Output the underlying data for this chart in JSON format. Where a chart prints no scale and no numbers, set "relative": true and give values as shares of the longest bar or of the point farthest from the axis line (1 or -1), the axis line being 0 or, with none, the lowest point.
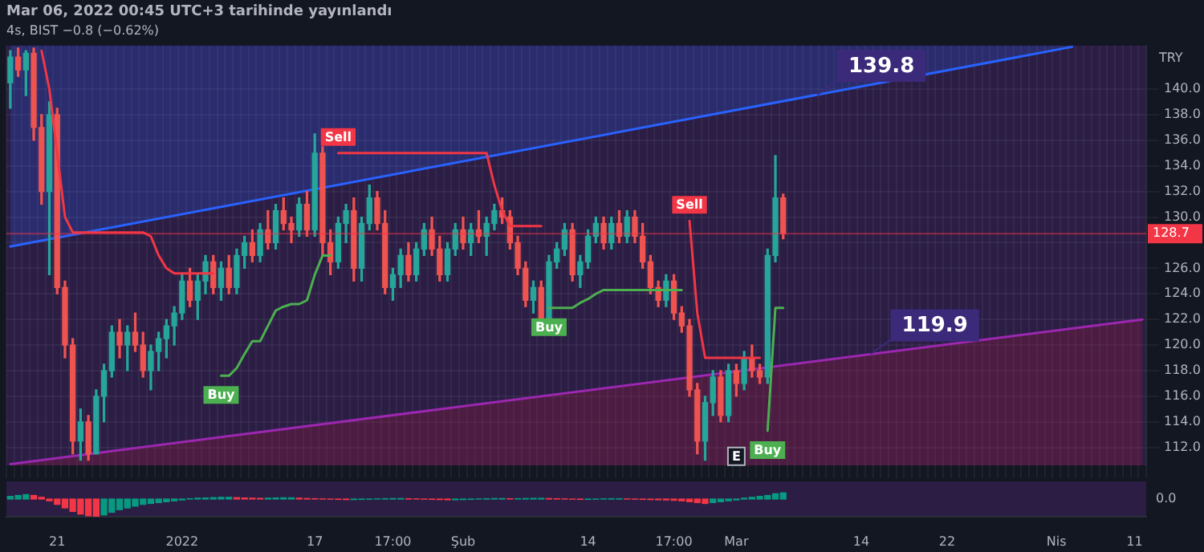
{
  "chart_data": [
    {
      "type": "candlestick",
      "title": "Mar 06, 2022 00:45 UTC+3 tarihinde yayınlandı",
      "subtitle": "4s, BIST −0.8 (−0.62%)",
      "ylabel": "TRY",
      "grid": true,
      "tick_labels": "y",
      "ylim": [
        110.6,
        143.4
      ],
      "yticks": [
        {
          "value": 112,
          "label": "112.0"
        },
        {
          "value": 114,
          "label": "114.0"
        },
        {
          "value": 116,
          "label": "116.0"
        },
        {
          "value": 118,
          "label": "118.0"
        },
        {
          "value": 120,
          "label": "120.0"
        },
        {
          "value": 122,
          "label": "122.0"
        },
        {
          "value": 124,
          "label": "124.0"
        },
        {
          "value": 126,
          "label": "126.0"
        },
        {
          "value": 128,
          "label": null
        },
        {
          "value": 130,
          "label": "130.0"
        },
        {
          "value": 132,
          "label": "132.0"
        },
        {
          "value": 134,
          "label": "134.0"
        },
        {
          "value": 136,
          "label": "136.0"
        },
        {
          "value": 138,
          "label": "138.0"
        },
        {
          "value": 140,
          "label": "140.0"
        }
      ],
      "categories": [
        null,
        null,
        null,
        null,
        null,
        null,
        "21",
        null,
        null,
        null,
        null,
        null,
        null,
        null,
        null,
        null,
        null,
        null,
        null,
        null,
        null,
        null,
        "2022",
        null,
        null,
        null,
        null,
        null,
        null,
        null,
        null,
        null,
        null,
        null,
        null,
        null,
        null,
        null,
        null,
        "17",
        null,
        null,
        null,
        null,
        null,
        null,
        null,
        null,
        null,
        "17:00",
        null,
        null,
        null,
        null,
        null,
        null,
        null,
        null,
        "Şub",
        null,
        null,
        null,
        null,
        null,
        null,
        null,
        null,
        null,
        null,
        null,
        null,
        null,
        null,
        null,
        "14",
        null,
        null,
        null,
        null,
        null,
        null,
        null,
        null,
        null,
        null,
        "17:00",
        null,
        null,
        null,
        null,
        null,
        null,
        null,
        "Mar",
        null,
        null,
        null,
        null,
        null,
        null,
        null,
        null,
        null,
        null,
        null,
        null,
        null,
        null,
        null,
        "14",
        null,
        null,
        null,
        null,
        null,
        null,
        null,
        null,
        null,
        null,
        "22",
        null,
        null,
        null,
        null,
        null,
        null,
        null,
        null,
        null,
        null,
        null,
        null,
        null,
        "Nis",
        null,
        null,
        null,
        null,
        null,
        null,
        null,
        null,
        null,
        "11",
        null
      ],
      "ohlc": [
        [
          140.5,
          143,
          138.5,
          142.5
        ],
        [
          142.5,
          143.2,
          141,
          141.5
        ],
        [
          141.5,
          143,
          139.5,
          142.8
        ],
        [
          142.8,
          143.2,
          136,
          137
        ],
        [
          137,
          138,
          131,
          132
        ],
        [
          132,
          139,
          125.5,
          138
        ],
        [
          138,
          138.5,
          124,
          124.5
        ],
        [
          124.5,
          125,
          119,
          120
        ],
        [
          120,
          120.5,
          111.5,
          112.5
        ],
        [
          112.5,
          115,
          111,
          114
        ],
        [
          114,
          114.5,
          111,
          111.5
        ],
        [
          111.5,
          116.5,
          111.5,
          116
        ],
        [
          116,
          118.5,
          114,
          118
        ],
        [
          118,
          121.5,
          117.5,
          121
        ],
        [
          121,
          122,
          119,
          120
        ],
        [
          120,
          121.5,
          118,
          121
        ],
        [
          121,
          122.5,
          119.5,
          120
        ],
        [
          120,
          121,
          117.5,
          118
        ],
        [
          118,
          120,
          116.5,
          119.5
        ],
        [
          119.5,
          121,
          118,
          120.5
        ],
        [
          120.5,
          122,
          119,
          121.5
        ],
        [
          121.5,
          123,
          120,
          122.5
        ],
        [
          122.5,
          125.5,
          122,
          125
        ],
        [
          125,
          126,
          123,
          123.5
        ],
        [
          123.5,
          125.5,
          122,
          125
        ],
        [
          125,
          127,
          124,
          126.5
        ],
        [
          126.5,
          127,
          124,
          124.5
        ],
        [
          124.5,
          126.5,
          123.5,
          126
        ],
        [
          126,
          127,
          124,
          124.5
        ],
        [
          124.5,
          127.5,
          124,
          127
        ],
        [
          127,
          128.5,
          126,
          128
        ],
        [
          128,
          129,
          126.5,
          127
        ],
        [
          127,
          129.5,
          126.5,
          129
        ],
        [
          129,
          130.5,
          127.5,
          128
        ],
        [
          128,
          131,
          127.5,
          130.5
        ],
        [
          130.5,
          131.5,
          129,
          129.5
        ],
        [
          129.5,
          130,
          128,
          129
        ],
        [
          129,
          131.5,
          128.5,
          131
        ],
        [
          131,
          132,
          128.5,
          129
        ],
        [
          129,
          136.5,
          128.5,
          135
        ],
        [
          135,
          135.5,
          127,
          128
        ],
        [
          128,
          129,
          125.5,
          126.5
        ],
        [
          126.5,
          130,
          126,
          129.5
        ],
        [
          129.5,
          131,
          128,
          130.5
        ],
        [
          130.5,
          131.5,
          125,
          126
        ],
        [
          126,
          130,
          125,
          129.5
        ],
        [
          129.5,
          132.5,
          129,
          131.5
        ],
        [
          131.5,
          132,
          129,
          129.5
        ],
        [
          129.5,
          130.5,
          124,
          124.5
        ],
        [
          124.5,
          126,
          123.5,
          125.5
        ],
        [
          125.5,
          127.5,
          124.5,
          127
        ],
        [
          127,
          128,
          125,
          125.5
        ],
        [
          125.5,
          128,
          125,
          127.5
        ],
        [
          127.5,
          129.5,
          127,
          129
        ],
        [
          129,
          130,
          127,
          127.5
        ],
        [
          127.5,
          128.5,
          125,
          125.5
        ],
        [
          125.5,
          128,
          125,
          127.5
        ],
        [
          127.5,
          129.5,
          127,
          129
        ],
        [
          129,
          130,
          127.5,
          128
        ],
        [
          128,
          129.5,
          127,
          129
        ],
        [
          129,
          130.5,
          128,
          128.5
        ],
        [
          128.5,
          130,
          127,
          129.5
        ],
        [
          129.5,
          131,
          129,
          130.5
        ],
        [
          130.5,
          131.5,
          129.5,
          130
        ],
        [
          130,
          130.5,
          127.5,
          128
        ],
        [
          128,
          128.5,
          125.5,
          126
        ],
        [
          126,
          126.5,
          123,
          123.5
        ],
        [
          123.5,
          125,
          122.5,
          124.5
        ],
        [
          124.5,
          125,
          122,
          122
        ],
        [
          122,
          127,
          122,
          126.5
        ],
        [
          126.5,
          128,
          126,
          127.5
        ],
        [
          127.5,
          129.5,
          127,
          129
        ],
        [
          129,
          129.5,
          125,
          125.5
        ],
        [
          125.5,
          127,
          124.5,
          126.5
        ],
        [
          126.5,
          129,
          126,
          128.5
        ],
        [
          128.5,
          130,
          128,
          129.5
        ],
        [
          129.5,
          130,
          127.5,
          128
        ],
        [
          128,
          130,
          127.5,
          129.5
        ],
        [
          129.5,
          130.5,
          128,
          128.5
        ],
        [
          128.5,
          130.5,
          128,
          130
        ],
        [
          130,
          130.5,
          128,
          128.5
        ],
        [
          128.5,
          129.5,
          126,
          126.5
        ],
        [
          126.5,
          127,
          124,
          124.5
        ],
        [
          124.5,
          125,
          123,
          123.5
        ],
        [
          123.5,
          125.5,
          123,
          125
        ],
        [
          125,
          125.5,
          122,
          122.5
        ],
        [
          122.5,
          123,
          121,
          121.5
        ],
        [
          121.5,
          122,
          116,
          116.5
        ],
        [
          116.5,
          117,
          111.5,
          112.5
        ],
        [
          112.5,
          116,
          111,
          115.5
        ],
        [
          115.5,
          118,
          114.5,
          117.5
        ],
        [
          117.5,
          118,
          114,
          114.5
        ],
        [
          114.5,
          118.5,
          114,
          118
        ],
        [
          118,
          118.5,
          116,
          117
        ],
        [
          117,
          119.5,
          116.5,
          119
        ],
        [
          119,
          120,
          117.5,
          118
        ],
        [
          118,
          118.5,
          117,
          117.5
        ],
        [
          117.5,
          127.5,
          117,
          127
        ],
        [
          127,
          134.8,
          126.5,
          131.5
        ],
        [
          131.5,
          131.8,
          128.3,
          128.7
        ],
        null,
        null,
        null,
        null,
        null,
        null,
        null,
        null,
        null,
        null,
        null,
        null,
        null,
        null,
        null,
        null,
        null,
        null,
        null,
        null,
        null,
        null,
        null,
        null,
        null,
        null,
        null,
        null,
        null,
        null,
        null,
        null,
        null,
        null,
        null,
        null,
        null,
        null,
        null,
        null,
        null,
        null,
        null,
        null,
        null,
        null
      ],
      "series": [
        {
          "type": "line",
          "color": "#2962ff",
          "values": [
            127.7,
            null,
            null,
            null,
            null,
            null,
            null,
            null,
            null,
            null,
            null,
            null,
            null,
            null,
            null,
            null,
            null,
            null,
            null,
            null,
            null,
            null,
            null,
            null,
            null,
            null,
            null,
            null,
            null,
            null,
            null,
            null,
            null,
            null,
            null,
            null,
            null,
            null,
            null,
            null,
            null,
            null,
            null,
            null,
            null,
            null,
            null,
            null,
            null,
            null,
            null,
            null,
            null,
            null,
            null,
            null,
            null,
            null,
            null,
            null,
            null,
            null,
            null,
            null,
            null,
            null,
            null,
            null,
            null,
            null,
            null,
            null,
            null,
            null,
            null,
            null,
            null,
            null,
            null,
            null,
            null,
            null,
            null,
            null,
            null,
            null,
            null,
            null,
            null,
            null,
            null,
            null,
            null,
            null,
            null,
            null,
            null,
            null,
            null,
            null,
            null,
            null,
            null,
            null,
            null,
            null,
            null,
            null,
            null,
            null,
            null,
            null,
            null,
            null,
            null,
            null,
            null,
            null,
            null,
            null,
            null,
            null,
            null,
            null,
            null,
            null,
            null,
            null,
            null,
            null,
            null,
            null,
            null,
            null,
            null,
            null,
            143.3,
            null,
            null,
            null,
            null,
            null,
            null,
            null,
            null,
            null
          ]
        },
        {
          "type": "line",
          "color": "#9c27b0",
          "values": [
            110.7,
            null,
            null,
            null,
            null,
            null,
            null,
            null,
            null,
            null,
            null,
            null,
            null,
            null,
            null,
            null,
            null,
            null,
            null,
            null,
            null,
            null,
            null,
            null,
            null,
            null,
            null,
            null,
            null,
            null,
            null,
            null,
            null,
            null,
            null,
            null,
            null,
            null,
            null,
            null,
            null,
            null,
            null,
            null,
            null,
            null,
            null,
            null,
            null,
            null,
            null,
            null,
            null,
            null,
            null,
            null,
            null,
            null,
            null,
            null,
            null,
            null,
            null,
            null,
            null,
            null,
            null,
            null,
            null,
            null,
            null,
            null,
            null,
            null,
            null,
            null,
            null,
            null,
            null,
            null,
            null,
            null,
            null,
            null,
            null,
            null,
            null,
            null,
            null,
            null,
            null,
            null,
            null,
            null,
            null,
            null,
            null,
            null,
            null,
            null,
            null,
            null,
            null,
            null,
            null,
            null,
            null,
            null,
            null,
            null,
            null,
            null,
            null,
            null,
            null,
            null,
            null,
            null,
            null,
            null,
            null,
            null,
            null,
            null,
            null,
            null,
            null,
            null,
            null,
            null,
            null,
            null,
            null,
            null,
            null,
            null,
            null,
            null,
            null,
            null,
            null,
            null,
            null,
            null,
            null,
            122.0
          ]
        },
        {
          "type": "line",
          "color": "#4caf50",
          "values": [
            null,
            null,
            null,
            null,
            null,
            null,
            null,
            null,
            null,
            null,
            null,
            null,
            null,
            null,
            null,
            null,
            null,
            null,
            null,
            null,
            null,
            null,
            null,
            null,
            null,
            null,
            null,
            117.6,
            117.6,
            118.2,
            119.3,
            120.3,
            120.3,
            121.5,
            122.7,
            123,
            123.2,
            123.2,
            123.5,
            125.5,
            127,
            127,
            null,
            null,
            null,
            null,
            null,
            null,
            null,
            null,
            null,
            null,
            null,
            null,
            null,
            null,
            null,
            null,
            null,
            null,
            null,
            null,
            null,
            null,
            null,
            null,
            null,
            null,
            null,
            122.9,
            122.9,
            122.9,
            122.9,
            123.3,
            123.6,
            124,
            124.3,
            124.3,
            124.3,
            124.3,
            124.3,
            124.3,
            124.3,
            124.3,
            124.3,
            124.3,
            124.3,
            null,
            null,
            null,
            null,
            null,
            null,
            null,
            null,
            null,
            null,
            113.3,
            122.9,
            122.9,
            null,
            null,
            null,
            null,
            null,
            null,
            null,
            null,
            null,
            null,
            null,
            null,
            null,
            null,
            null,
            null,
            null,
            null,
            null,
            null,
            null,
            null,
            null,
            null,
            null,
            null,
            null,
            null,
            null,
            null,
            null,
            null,
            null,
            null,
            null,
            null,
            null,
            null,
            null,
            null,
            null,
            null,
            null,
            null,
            null,
            null
          ]
        },
        {
          "type": "line",
          "color": "#f23645",
          "values": [
            null,
            null,
            null,
            null,
            143,
            140,
            135,
            130,
            128.8,
            128.8,
            128.8,
            128.8,
            128.8,
            128.8,
            128.8,
            128.8,
            128.8,
            128.8,
            128.5,
            127,
            126,
            125.6,
            125.6,
            125.6,
            125.6,
            125.6,
            125.6,
            null,
            null,
            null,
            null,
            null,
            null,
            null,
            null,
            null,
            null,
            null,
            null,
            null,
            null,
            null,
            135,
            135,
            135,
            135,
            135,
            135,
            135,
            135,
            135,
            135,
            135,
            135,
            135,
            135,
            135,
            135,
            135,
            135,
            135,
            135,
            132.5,
            130.5,
            129.3,
            129.3,
            129.3,
            129.3,
            129.3,
            null,
            null,
            null,
            null,
            null,
            null,
            null,
            null,
            null,
            null,
            null,
            null,
            null,
            null,
            null,
            null,
            null,
            null,
            129.7,
            122.5,
            119,
            119,
            119,
            119,
            119,
            119,
            119,
            119,
            null,
            null,
            null,
            null,
            null,
            null,
            null,
            null,
            null,
            null,
            null,
            null,
            null,
            null,
            null,
            null,
            null,
            null,
            null,
            null,
            null,
            null,
            null,
            null,
            null,
            null,
            null,
            null,
            null,
            null,
            null,
            null,
            null,
            null,
            null,
            null,
            null,
            null,
            null,
            null,
            null,
            null,
            null,
            null,
            null,
            null,
            null,
            null,
            null
          ]
        }
      ],
      "ref_lines": [
        {
          "axis": "y",
          "value": 128.7,
          "label": "128.7",
          "color": "#f23645"
        }
      ],
      "annotations": [
        "139.8",
        "119.9",
        "Buy",
        "Sell",
        "Buy",
        "Sell",
        "Buy",
        {
          "text": "E",
          "x": "Mar",
          "y": 111.3
        }
      ]
    },
    {
      "type": "bar",
      "relative": true,
      "categories": [
        null,
        null,
        null,
        null,
        null,
        null,
        "21",
        null,
        null,
        null,
        null,
        null,
        null,
        null,
        null,
        null,
        null,
        null,
        null,
        null,
        null,
        null,
        "2022",
        null,
        null,
        null,
        null,
        null,
        null,
        null,
        null,
        null,
        null,
        null,
        null,
        null,
        null,
        null,
        null,
        "17",
        null,
        null,
        null,
        null,
        null,
        null,
        null,
        null,
        null,
        "17:00",
        null,
        null,
        null,
        null,
        null,
        null,
        null,
        null,
        "Şub",
        null,
        null,
        null,
        null,
        null,
        null,
        null,
        null,
        null,
        null,
        null,
        null,
        null,
        null,
        null,
        "14",
        null,
        null,
        null,
        null,
        null,
        null,
        null,
        null,
        null,
        null,
        "17:00",
        null,
        null,
        null,
        null,
        null,
        null,
        null,
        "Mar",
        null,
        null,
        null,
        null,
        null,
        null,
        null,
        null,
        null,
        null,
        null,
        null,
        null,
        null,
        null,
        "14",
        null,
        null,
        null,
        null,
        null,
        null,
        null,
        null,
        null,
        null,
        "22",
        null,
        null,
        null,
        null,
        null,
        null,
        null,
        null,
        null,
        null,
        null,
        null,
        null,
        "Nis",
        null,
        null,
        null,
        null,
        null,
        null,
        null,
        null,
        null,
        "11",
        null
      ],
      "values": [
        0.15,
        0.2,
        0.25,
        0.2,
        0.1,
        -0.1,
        -0.3,
        -0.5,
        -0.7,
        -0.85,
        -0.95,
        -1,
        -0.9,
        -0.75,
        -0.6,
        -0.5,
        -0.4,
        -0.3,
        -0.25,
        -0.2,
        -0.15,
        -0.1,
        -0.05,
        0.02,
        0.05,
        0.06,
        0.08,
        0.1,
        0.1,
        0.08,
        0.06,
        0.05,
        0.04,
        0.05,
        0.06,
        0.07,
        0.07,
        0.05,
        0.03,
        0.02,
        0.01,
        -0.01,
        -0.02,
        -0.03,
        -0.03,
        -0.02,
        -0.01,
        0.01,
        0.02,
        0.03,
        0.03,
        0.02,
        0.01,
        -0.01,
        -0.02,
        -0.03,
        -0.04,
        -0.04,
        -0.03,
        -0.02,
        0.01,
        0.02,
        0.03,
        0.03,
        0.02,
        0.02,
        0.03,
        0.04,
        0.04,
        0.03,
        0.02,
        0.01,
        -0.01,
        -0.02,
        -0.02,
        -0.01,
        0.01,
        0.02,
        0.02,
        0.01,
        -0.01,
        -0.02,
        -0.03,
        -0.04,
        -0.05,
        -0.07,
        -0.1,
        -0.15,
        -0.2,
        -0.25,
        -0.2,
        -0.15,
        -0.1,
        -0.05,
        0.05,
        0.1,
        0.15,
        0.2,
        0.3,
        0.35,
        null,
        null,
        null,
        null,
        null,
        null,
        null,
        null,
        null,
        null,
        null,
        null,
        null,
        null,
        null,
        null,
        null,
        null,
        null,
        null,
        null,
        null,
        null,
        null,
        null,
        null,
        null,
        null,
        null,
        null,
        null,
        null,
        null,
        null,
        null,
        null,
        null,
        null,
        null,
        null,
        null,
        null,
        null,
        null,
        null,
        null
      ],
      "annotations": [
        "0.0"
      ]
    }
  ]
}
